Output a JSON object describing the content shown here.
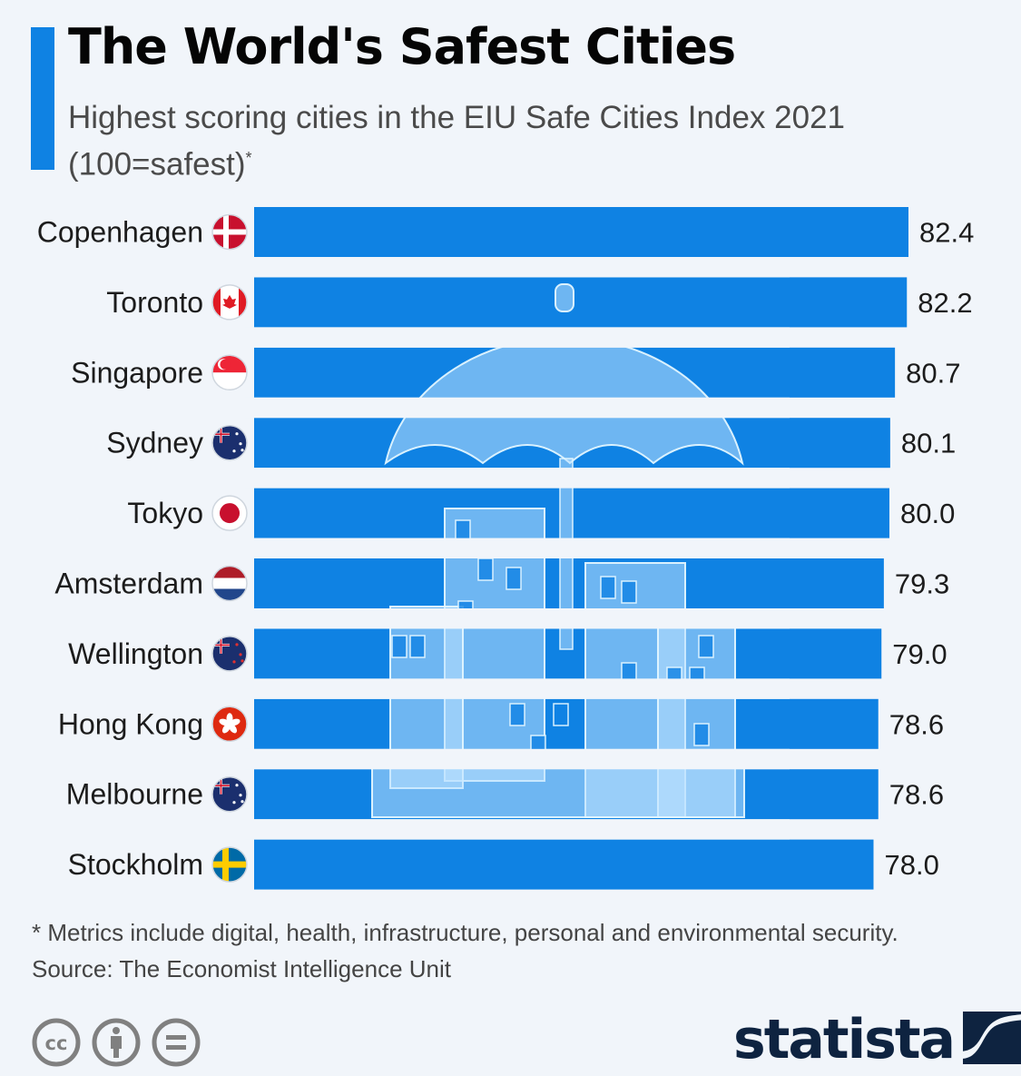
{
  "header": {
    "title": "The World's Safest Cities",
    "subtitle_line1": "Highest scoring cities in the EIU Safe Cities Index 2021",
    "subtitle_line2": "(100=safest)",
    "subtitle_marker": "*",
    "accent_color": "#0f82e3"
  },
  "chart_data": {
    "type": "bar",
    "orientation": "horizontal",
    "title": "The World's Safest Cities",
    "subtitle": "Highest scoring cities in the EIU Safe Cities Index 2021 (100=safest)*",
    "xlabel": "",
    "ylabel": "",
    "xlim": [
      0,
      100
    ],
    "grid": false,
    "legend": "none",
    "bar_color": "#0f82e3",
    "categories": [
      "Copenhagen",
      "Toronto",
      "Singapore",
      "Sydney",
      "Tokyo",
      "Amsterdam",
      "Wellington",
      "Hong Kong",
      "Melbourne",
      "Stockholm"
    ],
    "flags": [
      "denmark-flag",
      "canada-flag",
      "singapore-flag",
      "australia-flag",
      "japan-flag",
      "netherlands-flag",
      "new-zealand-flag",
      "hong-kong-flag",
      "australia-flag",
      "sweden-flag"
    ],
    "values": [
      82.4,
      82.2,
      80.7,
      80.1,
      80.0,
      79.3,
      79.0,
      78.6,
      78.6,
      78.0
    ],
    "value_labels": [
      "82.4",
      "82.2",
      "80.7",
      "80.1",
      "80.0",
      "79.3",
      "79.0",
      "78.6",
      "78.6",
      "78.0"
    ],
    "annotations": [
      "umbrella-over-buildings-illustration"
    ]
  },
  "footer": {
    "footnote": "* Metrics include digital, health, infrastructure, personal and environmental security.",
    "source": "Source: The Economist Intelligence Unit",
    "license_icons": [
      "cc-icon",
      "attribution-icon",
      "no-derivatives-icon"
    ],
    "logo_text": "statista",
    "logo_color": "#0e2340"
  }
}
